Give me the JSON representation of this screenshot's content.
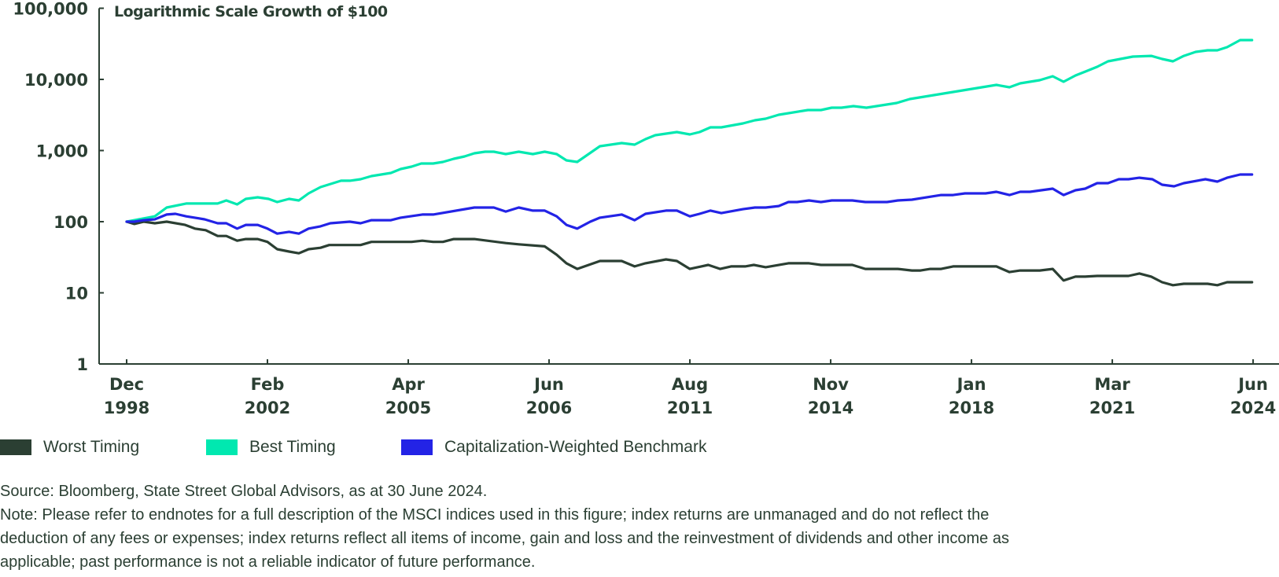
{
  "chart_data": {
    "type": "line",
    "title": "Logarithmic Scale Growth of $100",
    "xlabel": "",
    "ylabel": "",
    "yscale": "log",
    "ylim": [
      1,
      100000
    ],
    "yticks": [
      {
        "value": 100000,
        "label": "100,000"
      },
      {
        "value": 10000,
        "label": "10,000"
      },
      {
        "value": 1000,
        "label": "1,000"
      },
      {
        "value": 100,
        "label": "100"
      },
      {
        "value": 10,
        "label": "10"
      },
      {
        "value": 1,
        "label": "1"
      }
    ],
    "x_unit": "period index",
    "xlim": [
      0,
      104
    ],
    "xticks": [
      {
        "value": 0,
        "label": [
          "Dec",
          "1998"
        ]
      },
      {
        "value": 13,
        "label": [
          "Feb",
          "2002"
        ]
      },
      {
        "value": 26,
        "label": [
          "Apr",
          "2005"
        ]
      },
      {
        "value": 39,
        "label": [
          "Jun",
          "2006"
        ]
      },
      {
        "value": 52,
        "label": [
          "Aug",
          "2011"
        ]
      },
      {
        "value": 65,
        "label": [
          "Nov",
          "2014"
        ]
      },
      {
        "value": 78,
        "label": [
          "Jan",
          "2018"
        ]
      },
      {
        "value": 91,
        "label": [
          "Mar",
          "2021"
        ]
      },
      {
        "value": 104,
        "label": [
          "Jun",
          "2024"
        ]
      }
    ],
    "grid": false,
    "legend_position": "bottom-left",
    "series": [
      {
        "name": "Worst Timing",
        "color": "#2b3f33",
        "points": [
          [
            0,
            100
          ],
          [
            0.7,
            93
          ],
          [
            1.6,
            100
          ],
          [
            2.6,
            95
          ],
          [
            3.7,
            100
          ],
          [
            5.4,
            90
          ],
          [
            6.3,
            80
          ],
          [
            7.3,
            76
          ],
          [
            8.4,
            63
          ],
          [
            9.2,
            63
          ],
          [
            10.2,
            54
          ],
          [
            11,
            57
          ],
          [
            12.1,
            57
          ],
          [
            13,
            52
          ],
          [
            13.9,
            41
          ],
          [
            15,
            38
          ],
          [
            15.9,
            36
          ],
          [
            16.8,
            41
          ],
          [
            17.9,
            43
          ],
          [
            18.7,
            47
          ],
          [
            21.6,
            47
          ],
          [
            22.6,
            52
          ],
          [
            26.3,
            52
          ],
          [
            27.3,
            54
          ],
          [
            28.3,
            52
          ],
          [
            29.2,
            52
          ],
          [
            30.2,
            57
          ],
          [
            32.1,
            57
          ],
          [
            35,
            50
          ],
          [
            36.2,
            48
          ],
          [
            38.6,
            45
          ],
          [
            39.7,
            34.3
          ],
          [
            40.6,
            26
          ],
          [
            41.6,
            21.7
          ],
          [
            43.7,
            28
          ],
          [
            45.7,
            28
          ],
          [
            46.9,
            23.5
          ],
          [
            47.9,
            26
          ],
          [
            49.8,
            29.5
          ],
          [
            50.8,
            28
          ],
          [
            52,
            21.7
          ],
          [
            53.7,
            24.7
          ],
          [
            54.8,
            21.7
          ],
          [
            55.8,
            23.5
          ],
          [
            57.1,
            23.5
          ],
          [
            57.9,
            24.7
          ],
          [
            59,
            22.9
          ],
          [
            61.1,
            26
          ],
          [
            63,
            26
          ],
          [
            64.1,
            24.7
          ],
          [
            67,
            24.7
          ],
          [
            68.2,
            21.7
          ],
          [
            71.2,
            21.7
          ],
          [
            72.5,
            20.6
          ],
          [
            73.3,
            20.6
          ],
          [
            74.2,
            21.7
          ],
          [
            75.2,
            21.7
          ],
          [
            76.3,
            23.5
          ],
          [
            80.3,
            23.5
          ],
          [
            81.5,
            19.6
          ],
          [
            82.5,
            20.6
          ],
          [
            84.3,
            20.6
          ],
          [
            85.5,
            21.7
          ],
          [
            86.5,
            14.9
          ],
          [
            87.6,
            16.9
          ],
          [
            88.5,
            16.9
          ],
          [
            89.6,
            17.3
          ],
          [
            92.5,
            17.3
          ],
          [
            93.5,
            18.7
          ],
          [
            94.6,
            16.9
          ],
          [
            95.6,
            14.1
          ],
          [
            96.6,
            12.8
          ],
          [
            97.6,
            13.4
          ],
          [
            99.8,
            13.4
          ],
          [
            100.7,
            12.8
          ],
          [
            101.6,
            14.1
          ],
          [
            103.9,
            14.1
          ]
        ]
      },
      {
        "name": "Best Timing",
        "color": "#00e8b0",
        "points": [
          [
            0,
            100
          ],
          [
            2.6,
            119
          ],
          [
            3.7,
            158
          ],
          [
            5.5,
            180
          ],
          [
            8.4,
            180
          ],
          [
            9.2,
            199
          ],
          [
            10.2,
            175
          ],
          [
            11,
            209
          ],
          [
            12.1,
            220
          ],
          [
            13.1,
            209
          ],
          [
            13.9,
            189
          ],
          [
            15,
            209
          ],
          [
            15.9,
            199
          ],
          [
            16.8,
            250
          ],
          [
            17.9,
            306
          ],
          [
            19.8,
            376
          ],
          [
            20.6,
            376
          ],
          [
            21.6,
            395
          ],
          [
            22.6,
            437
          ],
          [
            24.4,
            484
          ],
          [
            25.3,
            550
          ],
          [
            26.3,
            593
          ],
          [
            27.2,
            657
          ],
          [
            28.3,
            657
          ],
          [
            29.2,
            692
          ],
          [
            30.2,
            766
          ],
          [
            31.2,
            826
          ],
          [
            32.1,
            915
          ],
          [
            33.1,
            962
          ],
          [
            33.9,
            962
          ],
          [
            35,
            891
          ],
          [
            36.2,
            962
          ],
          [
            37.5,
            891
          ],
          [
            38.6,
            962
          ],
          [
            39.7,
            891
          ],
          [
            40.6,
            728
          ],
          [
            41.6,
            692
          ],
          [
            43.7,
            1151
          ],
          [
            45.7,
            1273
          ],
          [
            46.9,
            1210
          ],
          [
            47.9,
            1445
          ],
          [
            48.8,
            1641
          ],
          [
            50.8,
            1818
          ],
          [
            52,
            1686
          ],
          [
            52.9,
            1818
          ],
          [
            53.9,
            2118
          ],
          [
            54.9,
            2118
          ],
          [
            56.9,
            2404
          ],
          [
            58,
            2663
          ],
          [
            59,
            2803
          ],
          [
            60.2,
            3186
          ],
          [
            62.9,
            3707
          ],
          [
            64.1,
            3707
          ],
          [
            65.1,
            4000
          ],
          [
            66,
            4000
          ],
          [
            67.1,
            4207
          ],
          [
            68.3,
            4000
          ],
          [
            71.1,
            4667
          ],
          [
            72.3,
            5297
          ],
          [
            80.3,
            8375
          ],
          [
            81.5,
            7762
          ],
          [
            82.5,
            8811
          ],
          [
            84.3,
            9750
          ],
          [
            85.5,
            11070
          ],
          [
            86.5,
            9270
          ],
          [
            87.6,
            11350
          ],
          [
            88.5,
            12880
          ],
          [
            89.6,
            15020
          ],
          [
            90.6,
            17950
          ],
          [
            92.9,
            20900
          ],
          [
            94.6,
            21400
          ],
          [
            95.6,
            19360
          ],
          [
            96.6,
            17950
          ],
          [
            97.6,
            21400
          ],
          [
            98.7,
            24360
          ],
          [
            99.8,
            25640
          ],
          [
            100.7,
            25640
          ],
          [
            101.6,
            28380
          ],
          [
            102.8,
            35650
          ],
          [
            103.9,
            35650
          ]
        ]
      },
      {
        "name": "Capitalization-Weighted Benchmark",
        "color": "#2323e6",
        "points": [
          [
            0,
            100
          ],
          [
            0.7,
            100
          ],
          [
            1.6,
            105
          ],
          [
            2.6,
            108
          ],
          [
            3.7,
            126
          ],
          [
            4.5,
            129
          ],
          [
            5.5,
            119
          ],
          [
            7.2,
            108
          ],
          [
            8.4,
            95
          ],
          [
            9.2,
            95
          ],
          [
            10.2,
            80
          ],
          [
            11,
            90
          ],
          [
            12.1,
            90
          ],
          [
            13,
            80
          ],
          [
            13.9,
            68
          ],
          [
            15,
            72
          ],
          [
            15.9,
            68
          ],
          [
            16.8,
            80
          ],
          [
            17.9,
            86
          ],
          [
            18.8,
            95
          ],
          [
            20.6,
            100
          ],
          [
            21.6,
            95
          ],
          [
            22.6,
            105
          ],
          [
            24.4,
            105
          ],
          [
            25.3,
            114
          ],
          [
            27.3,
            126
          ],
          [
            28.3,
            126
          ],
          [
            32.1,
            158
          ],
          [
            33.9,
            158
          ],
          [
            35,
            139
          ],
          [
            36.2,
            158
          ],
          [
            37.5,
            143
          ],
          [
            38.6,
            143
          ],
          [
            39.7,
            119
          ],
          [
            40.6,
            90
          ],
          [
            41.6,
            80
          ],
          [
            42.8,
            100
          ],
          [
            43.7,
            114
          ],
          [
            45.7,
            126
          ],
          [
            46.9,
            105
          ],
          [
            47.9,
            129
          ],
          [
            49.8,
            143
          ],
          [
            50.8,
            143
          ],
          [
            52,
            119
          ],
          [
            52.9,
            129
          ],
          [
            53.9,
            143
          ],
          [
            54.9,
            132
          ],
          [
            56.9,
            150
          ],
          [
            58,
            158
          ],
          [
            59,
            158
          ],
          [
            60.2,
            166
          ],
          [
            61.1,
            189
          ],
          [
            61.9,
            189
          ],
          [
            63,
            199
          ],
          [
            64.1,
            189
          ],
          [
            65.1,
            199
          ],
          [
            67,
            199
          ],
          [
            68.2,
            189
          ],
          [
            70.2,
            189
          ],
          [
            71.2,
            199
          ],
          [
            72.5,
            204
          ],
          [
            75.2,
            237
          ],
          [
            76.3,
            237
          ],
          [
            77.4,
            250
          ],
          [
            79.3,
            250
          ],
          [
            80.3,
            263
          ],
          [
            81.5,
            237
          ],
          [
            82.5,
            263
          ],
          [
            83.4,
            263
          ],
          [
            85.5,
            291
          ],
          [
            86.5,
            237
          ],
          [
            87.6,
            277
          ],
          [
            88.5,
            291
          ],
          [
            89.6,
            348
          ],
          [
            90.6,
            348
          ],
          [
            91.6,
            395
          ],
          [
            92.5,
            395
          ],
          [
            93.5,
            415
          ],
          [
            94.7,
            395
          ],
          [
            95.6,
            331
          ],
          [
            96.7,
            314
          ],
          [
            97.6,
            348
          ],
          [
            99.6,
            395
          ],
          [
            100.7,
            366
          ],
          [
            101.6,
            415
          ],
          [
            102.8,
            460
          ],
          [
            103.9,
            460
          ]
        ]
      }
    ]
  },
  "legend": [
    {
      "label": "Worst Timing",
      "color": "#2b3f33"
    },
    {
      "label": "Best Timing",
      "color": "#00e8b0"
    },
    {
      "label": "Capitalization-Weighted Benchmark",
      "color": "#2323e6"
    }
  ],
  "notes": {
    "source": "Source: Bloomberg, State Street Global Advisors, as at 30 June 2024.",
    "note_lines": [
      "Note: Please refer to endnotes for a full description of the MSCI indices used in this figure; index returns are unmanaged and do not reflect the",
      "deduction of any fees or expenses; index returns reflect all items of income, gain and loss and the reinvestment of dividends and other income as",
      "applicable; past performance is not a reliable indicator of future  performance."
    ]
  }
}
